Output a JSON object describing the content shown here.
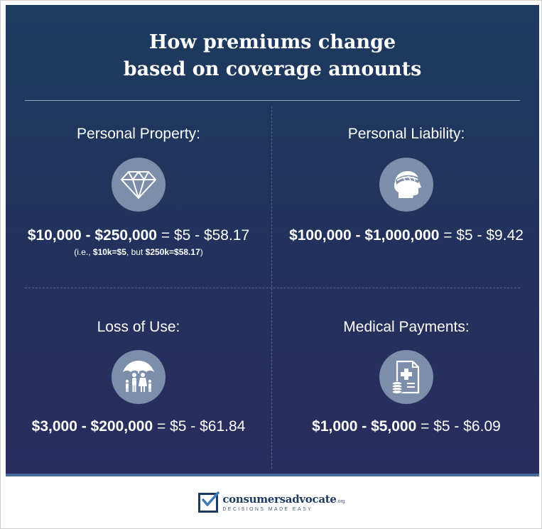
{
  "title": {
    "line1": "How premiums change",
    "line2": "based on coverage amounts"
  },
  "cells": [
    {
      "label": "Personal Property:",
      "icon": "diamond-icon",
      "range_bold": "$10,000 - $250,000",
      "range_rest": " = $5 - $58.17",
      "note": {
        "prefix": "(i.e., ",
        "bold1": "$10k=$5",
        "middle": ", but ",
        "bold2": "$250k=$58.17",
        "suffix": ")"
      }
    },
    {
      "label": "Personal Liability:",
      "icon": "injured-head-icon",
      "range_bold": "$100,000 - $1,000,000",
      "range_rest": " = $5 - $9.42"
    },
    {
      "label": "Loss of Use:",
      "icon": "family-umbrella-icon",
      "range_bold": "$3,000 - $200,000",
      "range_rest": " = $5 - $61.84"
    },
    {
      "label": "Medical Payments:",
      "icon": "medical-bill-icon",
      "range_bold": "$1,000 - $5,000",
      "range_rest": " = $5 - $6.09"
    }
  ],
  "footer": {
    "brand": "consumersadvocate",
    "brand_suffix": ".org",
    "tagline": "DECISIONS MADE EASY"
  },
  "colors": {
    "panel_top": "#1d3a5f",
    "panel_bottom": "#2a2c5e",
    "icon_circle": "#7c8ea9",
    "brand": "#1d3a5f"
  }
}
